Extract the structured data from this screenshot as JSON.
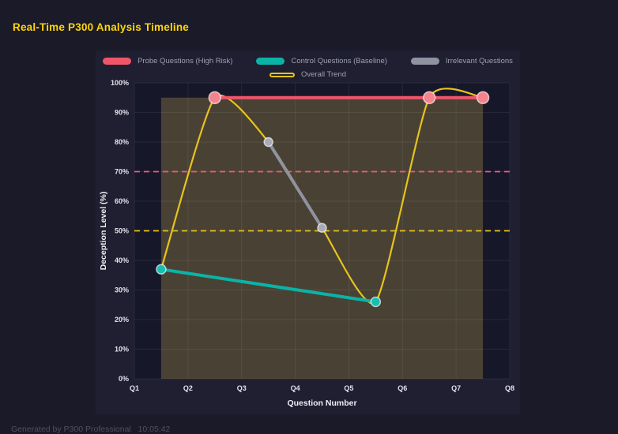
{
  "header": {
    "title": "Real-Time P300 Analysis Timeline"
  },
  "footer": {
    "text": "Generated by P300 Professional   10:05:42"
  },
  "colors": {
    "title_accent": "#ffd60a",
    "page_bg": "#1a1a29",
    "panel_bg": "#1f1f31",
    "plot_bg": "#17172a"
  },
  "chart_data": {
    "type": "line",
    "title": "Real-Time P300 Analysis Timeline",
    "xlabel": "Question Number",
    "ylabel": "Deception Level (%)",
    "x_ticks": [
      "Q1",
      "Q2",
      "Q3",
      "Q4",
      "Q5",
      "Q6",
      "Q7",
      "Q8"
    ],
    "xlim": [
      1,
      8
    ],
    "ylim": [
      0,
      100
    ],
    "y_tick_step": 10,
    "y_tick_suffix": "%",
    "grid": true,
    "legend_position": "top",
    "grid_color": "rgba(255,255,255,0.07)",
    "tick_color": "#e2e2ec",
    "axis_title_color": "#eef0f6",
    "series": [
      {
        "name": "Probe Questions (High Risk)",
        "color": "#f1556a",
        "point_color": "#f4838d",
        "point_radius": 7.5,
        "marker": true,
        "x": [
          2.5,
          6.5,
          7.5
        ],
        "y": [
          95,
          95,
          95
        ]
      },
      {
        "name": "Control Questions (Baseline)",
        "color": "#0bb3a7",
        "point_color": "#16bfb0",
        "point_radius": 6,
        "marker": true,
        "x": [
          1.5,
          5.5
        ],
        "y": [
          37,
          26
        ]
      },
      {
        "name": "Irrelevant Questions",
        "color": "#8f93a0",
        "point_color": "#a9acb8",
        "point_radius": 5.5,
        "marker": true,
        "x": [
          3.5,
          4.5
        ],
        "y": [
          80,
          51
        ]
      },
      {
        "name": "Overall Trend",
        "color": "#e7c31c",
        "marker": false,
        "smooth": true,
        "x": [
          1.5,
          2.5,
          3.5,
          4.5,
          5.5,
          6.5,
          7.5
        ],
        "y": [
          37,
          95,
          80,
          51,
          26,
          95,
          95
        ]
      }
    ],
    "thresholds": [
      {
        "value": 70,
        "color": "#f4587a",
        "style": "dashed"
      },
      {
        "value": 50,
        "color": "#e7c31c",
        "style": "dashed"
      }
    ],
    "shaded_region": {
      "x0": 1.5,
      "x1": 7.5,
      "y0": 0,
      "y1": 95,
      "color": "rgba(209,185,82,0.27)"
    }
  }
}
